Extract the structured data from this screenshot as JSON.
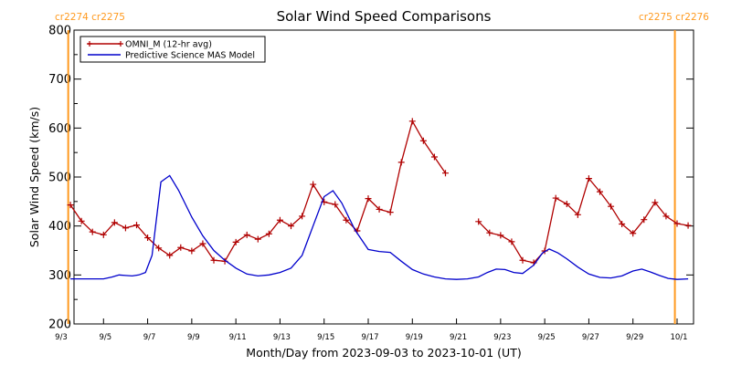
{
  "chart_data": {
    "type": "line",
    "title": "Solar Wind Speed Comparisons",
    "xlabel": "Month/Day from 2023-09-03 to 2023-10-01 (UT)",
    "ylabel": "Solar Wind Speed (km/s)",
    "x_range_days": [
      0,
      28
    ],
    "ylim": [
      200,
      800
    ],
    "yticks": [
      200,
      300,
      400,
      500,
      600,
      700,
      800
    ],
    "xticks": [
      {
        "day": 0,
        "label": "9/3"
      },
      {
        "day": 2,
        "label": "9/5"
      },
      {
        "day": 4,
        "label": "9/7"
      },
      {
        "day": 6,
        "label": "9/9"
      },
      {
        "day": 8,
        "label": "9/11"
      },
      {
        "day": 10,
        "label": "9/13"
      },
      {
        "day": 12,
        "label": "9/15"
      },
      {
        "day": 14,
        "label": "9/17"
      },
      {
        "day": 16,
        "label": "9/19"
      },
      {
        "day": 18,
        "label": "9/21"
      },
      {
        "day": 20,
        "label": "9/23"
      },
      {
        "day": 22,
        "label": "9/25"
      },
      {
        "day": 24,
        "label": "9/27"
      },
      {
        "day": 26,
        "label": "9/29"
      },
      {
        "day": 28,
        "label": "10/1"
      }
    ],
    "legend_position": "top-left",
    "markers": [
      {
        "day": 0.4,
        "label": "cr2274 cr2275",
        "label_side": "left",
        "color": "#ff9a1f"
      },
      {
        "day": 27.9,
        "label": "cr2275 cr2276",
        "label_side": "right",
        "color": "#ff9a1f"
      }
    ],
    "series": [
      {
        "name": "OMNI_M (12-hr avg)",
        "color": "#b00000",
        "marker": "plus",
        "segments": [
          [
            [
              0.5,
              443
            ],
            [
              1.0,
              410
            ],
            [
              1.5,
              388
            ],
            [
              2.0,
              382
            ],
            [
              2.5,
              407
            ],
            [
              3.0,
              396
            ],
            [
              3.5,
              402
            ],
            [
              4.0,
              376
            ],
            [
              4.5,
              355
            ],
            [
              5.0,
              340
            ],
            [
              5.5,
              356
            ],
            [
              6.0,
              349
            ],
            [
              6.5,
              364
            ],
            [
              7.0,
              330
            ],
            [
              7.5,
              328
            ],
            [
              8.0,
              367
            ],
            [
              8.5,
              382
            ],
            [
              9.0,
              373
            ],
            [
              9.5,
              384
            ],
            [
              10.0,
              412
            ],
            [
              10.5,
              400
            ],
            [
              11.0,
              420
            ],
            [
              11.5,
              485
            ],
            [
              12.0,
              449
            ],
            [
              12.5,
              444
            ],
            [
              13.0,
              412
            ],
            [
              13.5,
              390
            ],
            [
              14.0,
              456
            ],
            [
              14.5,
              434
            ],
            [
              15.0,
              428
            ],
            [
              15.5,
              530
            ],
            [
              16.0,
              614
            ],
            [
              16.5,
              574
            ],
            [
              17.0,
              541
            ],
            [
              17.5,
              508
            ]
          ],
          [
            [
              19.0,
              409
            ],
            [
              19.5,
              386
            ],
            [
              20.0,
              381
            ],
            [
              20.5,
              368
            ],
            [
              21.0,
              330
            ],
            [
              21.5,
              325
            ],
            [
              22.0,
              349
            ],
            [
              22.5,
              457
            ],
            [
              23.0,
              445
            ],
            [
              23.5,
              423
            ],
            [
              24.0,
              497
            ],
            [
              24.5,
              470
            ],
            [
              25.0,
              440
            ],
            [
              25.5,
              404
            ],
            [
              26.0,
              385
            ],
            [
              26.5,
              413
            ],
            [
              27.0,
              448
            ],
            [
              27.5,
              420
            ],
            [
              28.0,
              405
            ],
            [
              28.5,
              401
            ]
          ]
        ]
      },
      {
        "name": "Predictive Science MAS Model",
        "color": "#0000cc",
        "marker": "none",
        "segments": [
          [
            [
              0.5,
              292
            ],
            [
              2.0,
              292
            ],
            [
              2.4,
              296
            ],
            [
              2.7,
              300
            ],
            [
              3.0,
              299
            ],
            [
              3.3,
              298
            ],
            [
              3.6,
              300
            ],
            [
              3.9,
              305
            ],
            [
              4.2,
              340
            ],
            [
              4.6,
              490
            ],
            [
              5.0,
              503
            ],
            [
              5.4,
              473
            ],
            [
              6.0,
              418
            ],
            [
              6.5,
              380
            ],
            [
              7.0,
              350
            ],
            [
              7.5,
              330
            ],
            [
              8.0,
              314
            ],
            [
              8.5,
              302
            ],
            [
              9.0,
              298
            ],
            [
              9.5,
              300
            ],
            [
              10.0,
              305
            ],
            [
              10.5,
              314
            ],
            [
              11.0,
              340
            ],
            [
              11.5,
              400
            ],
            [
              12.0,
              460
            ],
            [
              12.4,
              472
            ],
            [
              12.8,
              447
            ],
            [
              13.4,
              392
            ],
            [
              14.0,
              352
            ],
            [
              14.5,
              348
            ],
            [
              15.0,
              346
            ],
            [
              15.5,
              328
            ],
            [
              16.0,
              311
            ],
            [
              16.5,
              302
            ],
            [
              17.0,
              296
            ],
            [
              17.5,
              292
            ],
            [
              18.0,
              291
            ],
            [
              18.5,
              292
            ],
            [
              19.0,
              296
            ],
            [
              19.4,
              305
            ],
            [
              19.8,
              312
            ],
            [
              20.2,
              311
            ],
            [
              20.6,
              305
            ],
            [
              21.0,
              303
            ],
            [
              21.5,
              320
            ],
            [
              21.9,
              345
            ],
            [
              22.2,
              353
            ],
            [
              22.6,
              345
            ],
            [
              23.0,
              333
            ],
            [
              23.5,
              316
            ],
            [
              24.0,
              302
            ],
            [
              24.5,
              295
            ],
            [
              25.0,
              294
            ],
            [
              25.5,
              298
            ],
            [
              26.0,
              308
            ],
            [
              26.4,
              312
            ],
            [
              26.8,
              306
            ],
            [
              27.2,
              299
            ],
            [
              27.6,
              293
            ],
            [
              28.0,
              291
            ],
            [
              28.5,
              292
            ]
          ]
        ]
      }
    ]
  }
}
